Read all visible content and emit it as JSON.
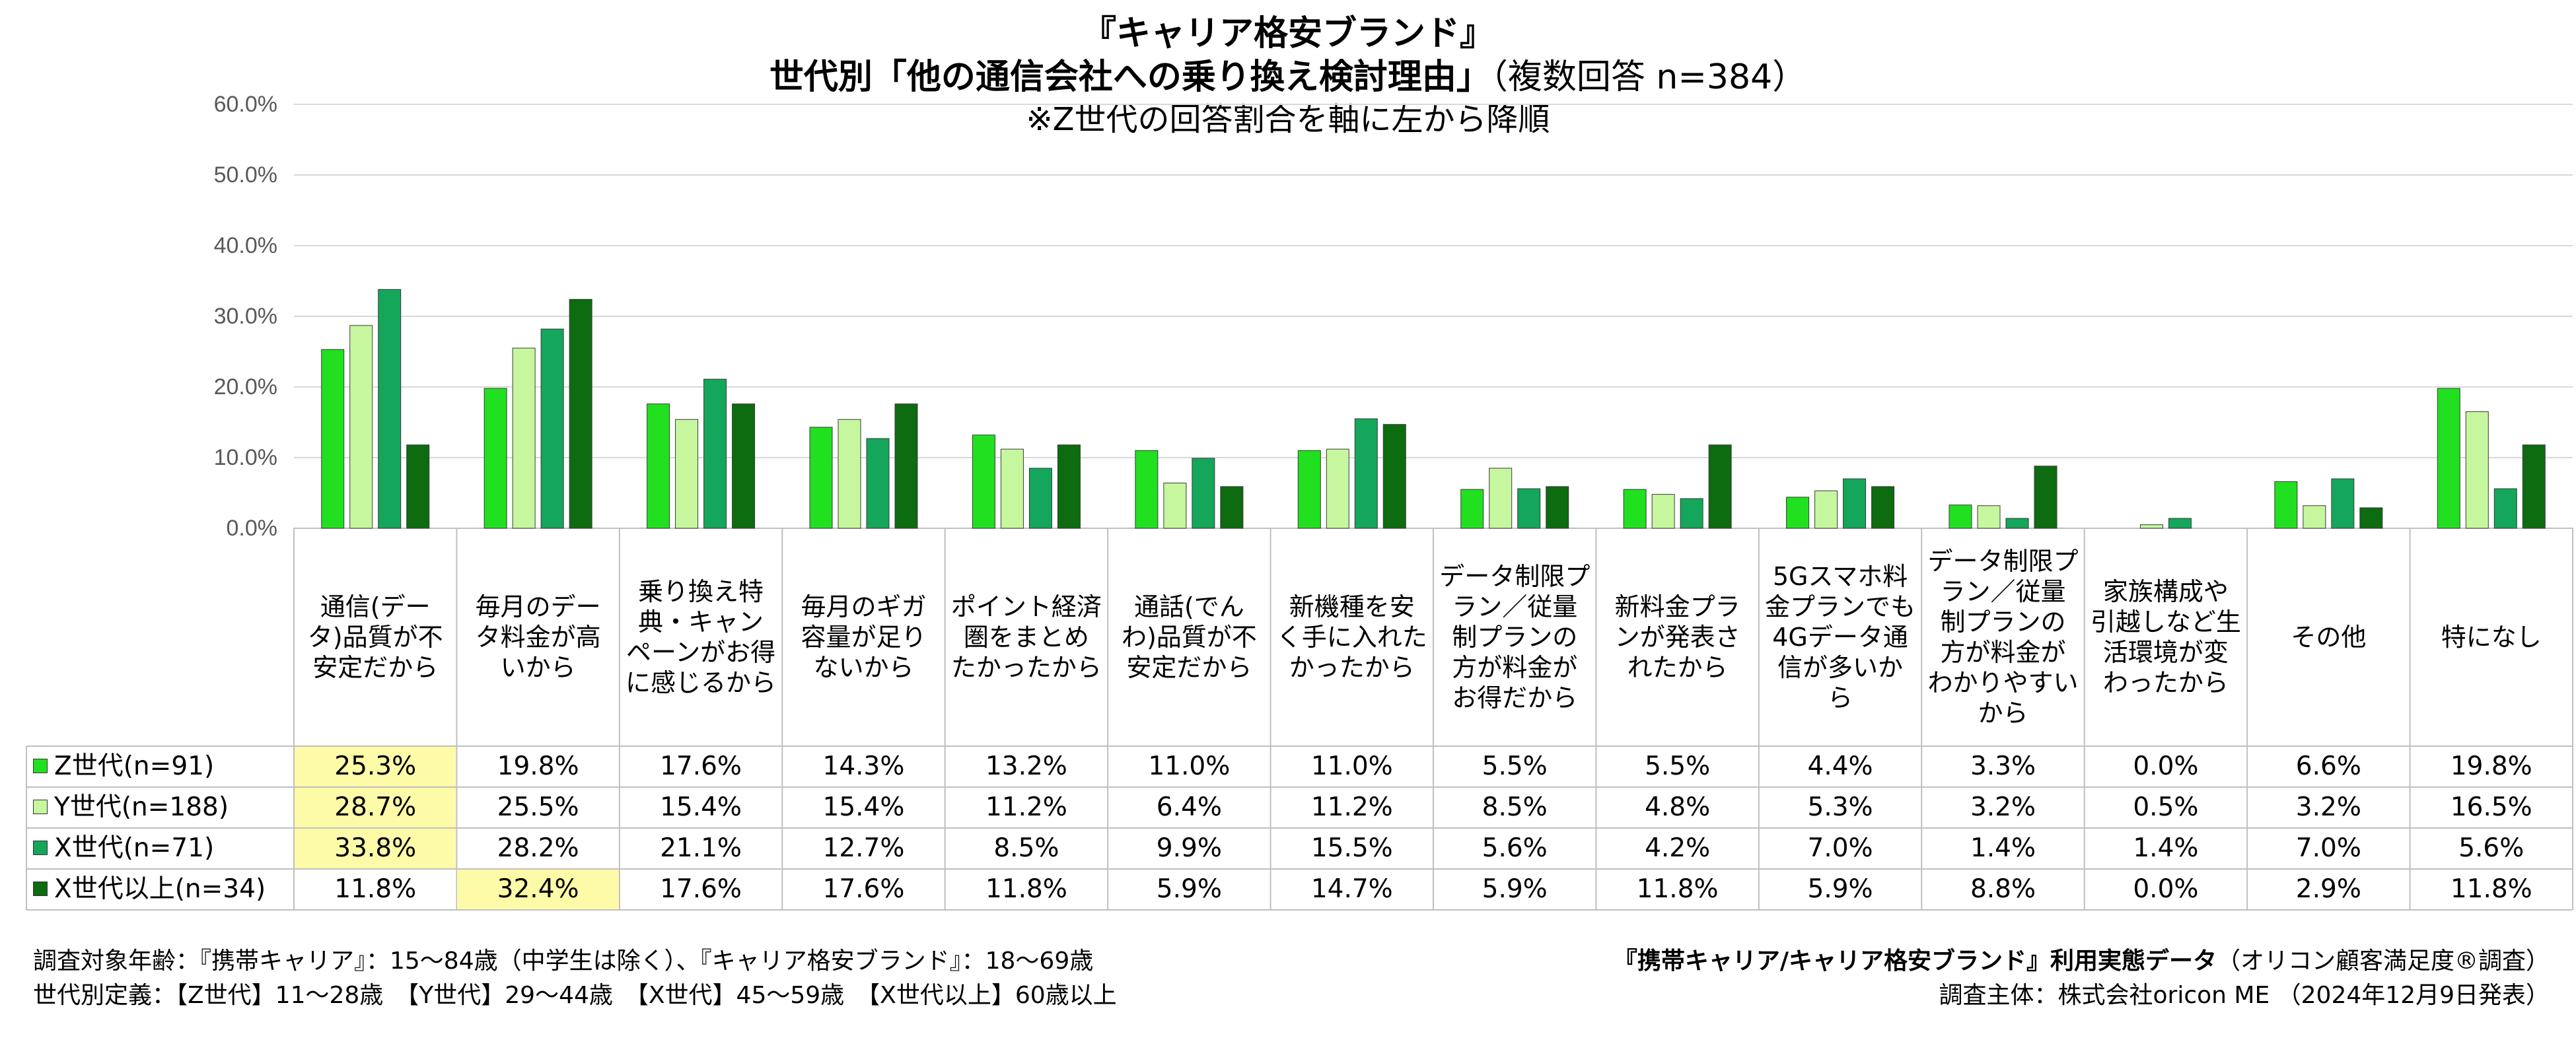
{
  "title": {
    "line1": "『キャリア格安ブランド』",
    "line2_bold": "世代別「他の通信会社への乗り換え検討理由」",
    "line2_rest": "（複数回答 n=384）",
    "line3": "※Z世代の回答割合を軸に左から降順"
  },
  "colors": {
    "z": "#21e01f",
    "y": "#c6f79e",
    "x": "#14a65a",
    "x_plus": "#0d6b10",
    "highlight": "#fdfba8"
  },
  "chart_data": {
    "type": "bar",
    "title": "世代別「他の通信会社への乗り換え検討理由」（複数回答 n=384）",
    "ylim": [
      0,
      60
    ],
    "yticks": [
      "0.0%",
      "10.0%",
      "20.0%",
      "30.0%",
      "40.0%",
      "50.0%",
      "60.0%"
    ],
    "categories": [
      "通信(データ)品質が不安定だから",
      "毎月のデータ料金が高いから",
      "乗り換え特典・キャンペーンがお得に感じるから",
      "毎月のギガ容量が足りないから",
      "ポイント経済圏をまとめたかったから",
      "通話(でんわ)品質が不安定だから",
      "新機種を安く手に入れたかったから",
      "データ制限プラン／従量制プランの方が料金がお得だから",
      "新料金プランが発表されたから",
      "5Gスマホ料金プランでも4Gデータ通信が多いから",
      "データ制限プラン／従量制プランの方が料金がわかりやすいから",
      "家族構成や引越しなど生活環境が変わったから",
      "その他",
      "特になし"
    ],
    "series": [
      {
        "name": "Z世代(n=91)",
        "key": "z",
        "values": [
          25.3,
          19.8,
          17.6,
          14.3,
          13.2,
          11.0,
          11.0,
          5.5,
          5.5,
          4.4,
          3.3,
          0.0,
          6.6,
          19.8
        ]
      },
      {
        "name": "Y世代(n=188)",
        "key": "y",
        "values": [
          28.7,
          25.5,
          15.4,
          15.4,
          11.2,
          6.4,
          11.2,
          8.5,
          4.8,
          5.3,
          3.2,
          0.5,
          3.2,
          16.5
        ]
      },
      {
        "name": "X世代(n=71)",
        "key": "x",
        "values": [
          33.8,
          28.2,
          21.1,
          12.7,
          8.5,
          9.9,
          15.5,
          5.6,
          4.2,
          7.0,
          1.4,
          1.4,
          7.0,
          5.6
        ]
      },
      {
        "name": "X世代以上(n=34)",
        "key": "x_plus",
        "values": [
          11.8,
          32.4,
          17.6,
          17.6,
          11.8,
          5.9,
          14.7,
          5.9,
          11.8,
          5.9,
          8.8,
          0.0,
          2.9,
          11.8
        ]
      }
    ]
  },
  "table": {
    "category_labels": [
      [
        "通信(デー",
        "タ)品質が不",
        "安定だから"
      ],
      [
        "毎月のデー",
        "タ料金が高",
        "いから"
      ],
      [
        "乗り換え特",
        "典・キャン",
        "ペーンがお得",
        "に感じるから"
      ],
      [
        "毎月のギガ",
        "容量が足り",
        "ないから"
      ],
      [
        "ポイント経済",
        "圏をまとめ",
        "たかったから"
      ],
      [
        "通話(でん",
        "わ)品質が不",
        "安定だから"
      ],
      [
        "新機種を安",
        "く手に入れた",
        "かったから"
      ],
      [
        "データ制限プ",
        "ラン／従量",
        "制プランの",
        "方が料金が",
        "お得だから"
      ],
      [
        "新料金プラ",
        "ンが発表さ",
        "れたから"
      ],
      [
        "5Gスマホ料",
        "金プランでも",
        "4Gデータ通",
        "信が多いか",
        "ら"
      ],
      [
        "データ制限プ",
        "ラン／従量",
        "制プランの",
        "方が料金が",
        "わかりやすい",
        "から"
      ],
      [
        "家族構成や",
        "引越しなど生",
        "活環境が変",
        "わったから"
      ],
      [
        "その他"
      ],
      [
        "特になし"
      ]
    ],
    "rows": [
      {
        "label": "Z世代(n=91)",
        "key": "z",
        "cells": [
          "25.3%",
          "19.8%",
          "17.6%",
          "14.3%",
          "13.2%",
          "11.0%",
          "11.0%",
          "5.5%",
          "5.5%",
          "4.4%",
          "3.3%",
          "0.0%",
          "6.6%",
          "19.8%"
        ],
        "highlight": [
          0
        ]
      },
      {
        "label": "Y世代(n=188)",
        "key": "y",
        "cells": [
          "28.7%",
          "25.5%",
          "15.4%",
          "15.4%",
          "11.2%",
          "6.4%",
          "11.2%",
          "8.5%",
          "4.8%",
          "5.3%",
          "3.2%",
          "0.5%",
          "3.2%",
          "16.5%"
        ],
        "highlight": [
          0
        ]
      },
      {
        "label": "X世代(n=71)",
        "key": "x",
        "cells": [
          "33.8%",
          "28.2%",
          "21.1%",
          "12.7%",
          "8.5%",
          "9.9%",
          "15.5%",
          "5.6%",
          "4.2%",
          "7.0%",
          "1.4%",
          "1.4%",
          "7.0%",
          "5.6%"
        ],
        "highlight": [
          0
        ]
      },
      {
        "label": "X世代以上(n=34)",
        "key": "x_plus",
        "cells": [
          "11.8%",
          "32.4%",
          "17.6%",
          "17.6%",
          "11.8%",
          "5.9%",
          "14.7%",
          "5.9%",
          "11.8%",
          "5.9%",
          "8.8%",
          "0.0%",
          "2.9%",
          "11.8%"
        ],
        "highlight": [
          1
        ]
      }
    ]
  },
  "notes": {
    "left_line1": "調査対象年齢：『携帯キャリア』：15～84歳（中学生は除く）、『キャリア格安ブランド』：18～69歳",
    "left_line2": "世代別定義：【Z世代】11～28歳　【Y世代】29～44歳　【X世代】45～59歳　【X世代以上】60歳以上",
    "right_line1_bold": "『携帯キャリア/キャリア格安ブランド』利用実態データ",
    "right_line1_rest": "（オリコン顧客満足度®調査）",
    "right_line2": "調査主体：株式会社oricon ME （2024年12月9日発表）"
  }
}
